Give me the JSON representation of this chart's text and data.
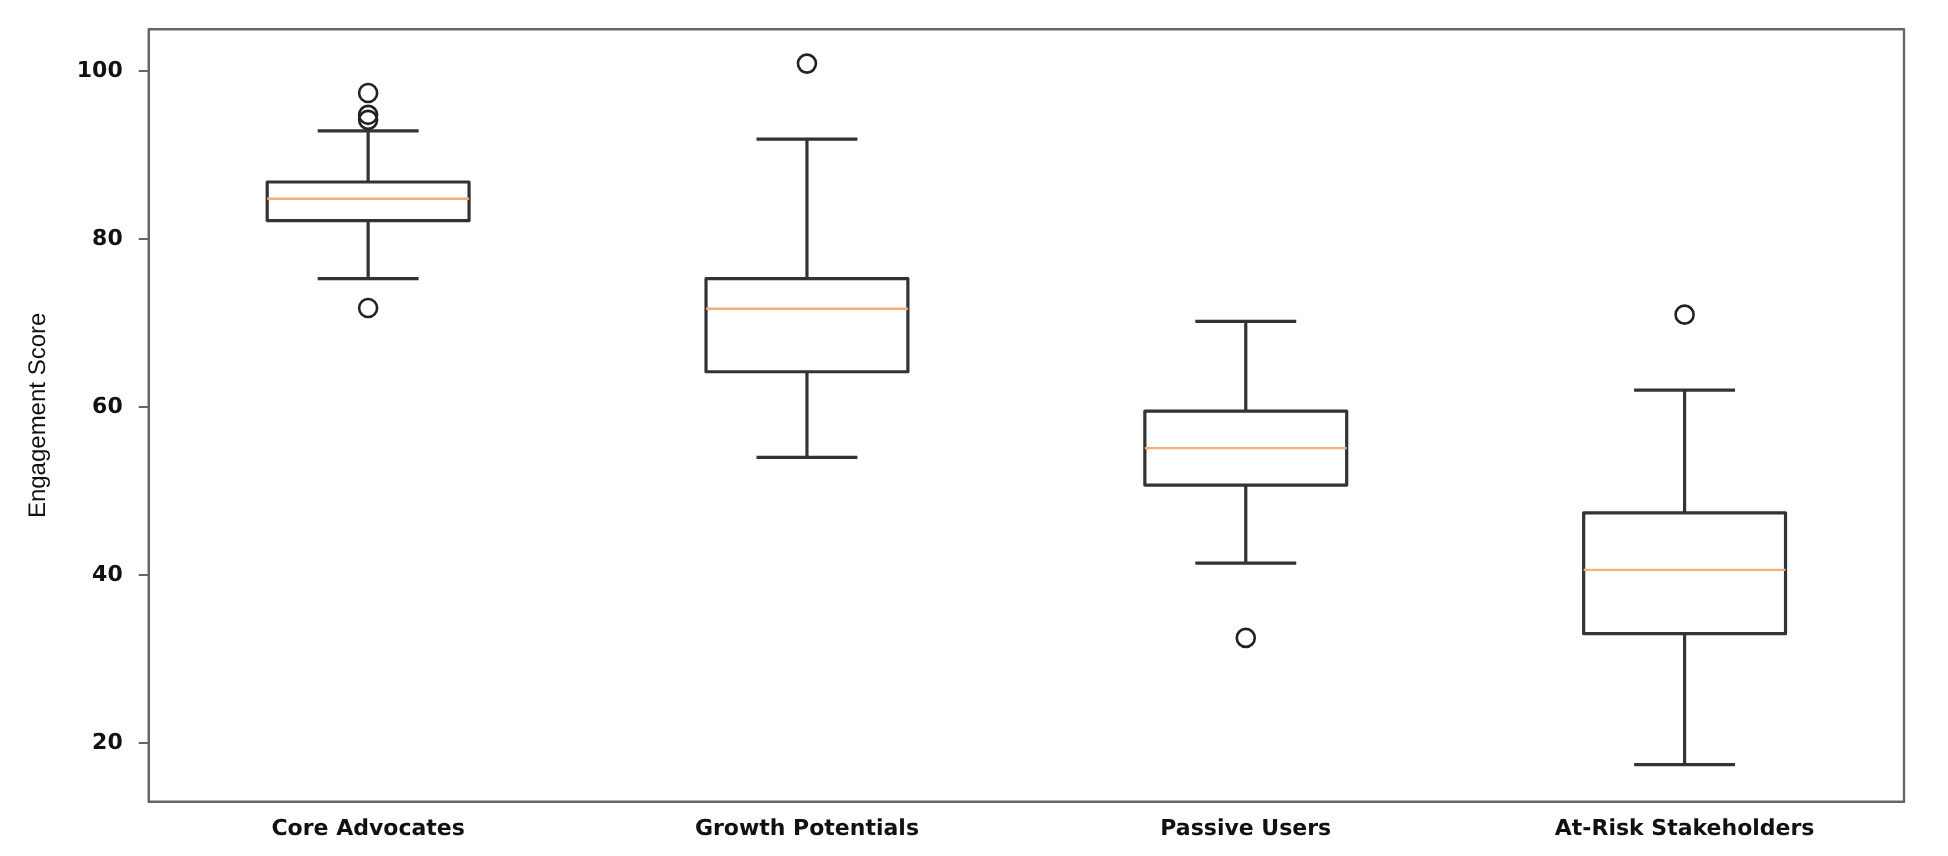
{
  "chart_data": {
    "type": "box",
    "ylabel": "Engagement Score",
    "categories": [
      "Core Advocates",
      "Growth Potentials",
      "Passive Users",
      "At-Risk Stakeholders"
    ],
    "boxes": [
      {
        "low": 75.3,
        "q1": 82.2,
        "median": 84.8,
        "q3": 86.8,
        "high": 92.9,
        "outliers": [
          97.4,
          94.8,
          94.2,
          71.8
        ]
      },
      {
        "low": 54.0,
        "q1": 64.2,
        "median": 71.7,
        "q3": 75.3,
        "high": 91.9,
        "outliers": [
          100.9
        ]
      },
      {
        "low": 41.4,
        "q1": 50.7,
        "median": 55.1,
        "q3": 59.5,
        "high": 70.2,
        "outliers": [
          32.5
        ]
      },
      {
        "low": 17.4,
        "q1": 33.0,
        "median": 40.6,
        "q3": 47.4,
        "high": 62.0,
        "outliers": [
          71.0
        ]
      }
    ],
    "ylim": [
      13,
      105
    ],
    "yticks": [
      20,
      40,
      60,
      80,
      100
    ],
    "grid": false
  }
}
